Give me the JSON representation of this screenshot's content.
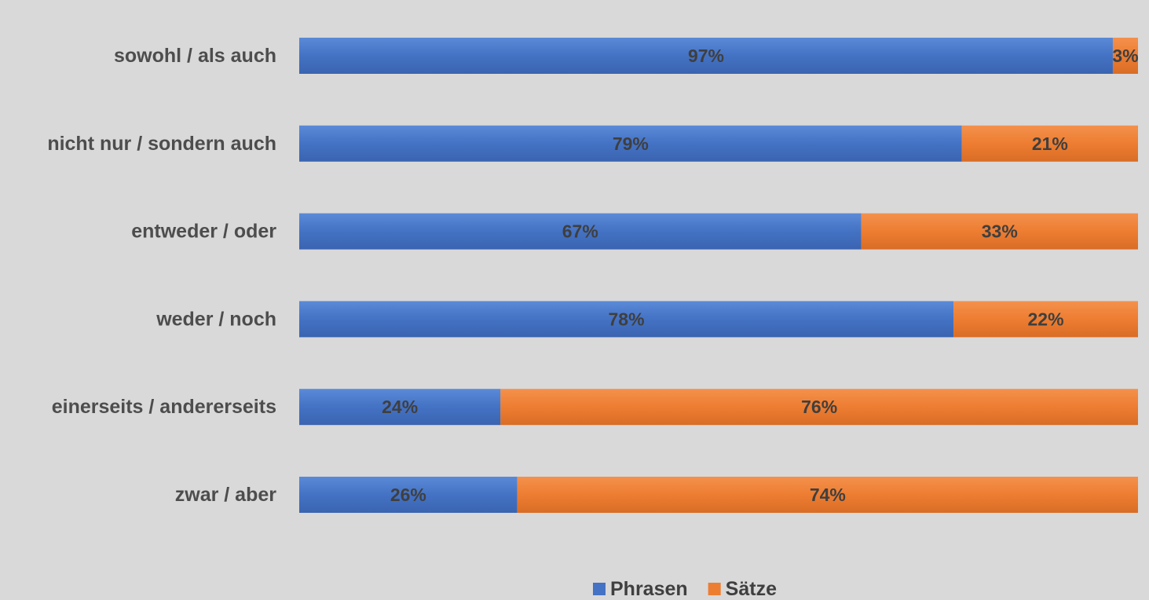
{
  "chart_data": {
    "type": "bar",
    "orientation": "horizontal",
    "stacked": true,
    "categories": [
      "sowohl / als auch",
      "nicht nur / sondern auch",
      "entweder / oder",
      "weder / noch",
      "einerseits / andererseits",
      "zwar / aber"
    ],
    "series": [
      {
        "name": "Phrasen",
        "values": [
          97,
          79,
          67,
          78,
          24,
          26
        ],
        "labels": [
          "97%",
          "79%",
          "67%",
          "78%",
          "24%",
          "26%"
        ],
        "color": "#4472c4"
      },
      {
        "name": "Sätze",
        "values": [
          3,
          21,
          33,
          22,
          76,
          74
        ],
        "labels": [
          "3%",
          "21%",
          "33%",
          "22%",
          "76%",
          "74%"
        ],
        "color": "#ed7d31"
      }
    ],
    "xlim": [
      0,
      100
    ],
    "unit": "%",
    "title": "",
    "xlabel": "",
    "ylabel": "",
    "grid": false,
    "legend_position": "bottom",
    "background_color": "#d9d9d9"
  }
}
